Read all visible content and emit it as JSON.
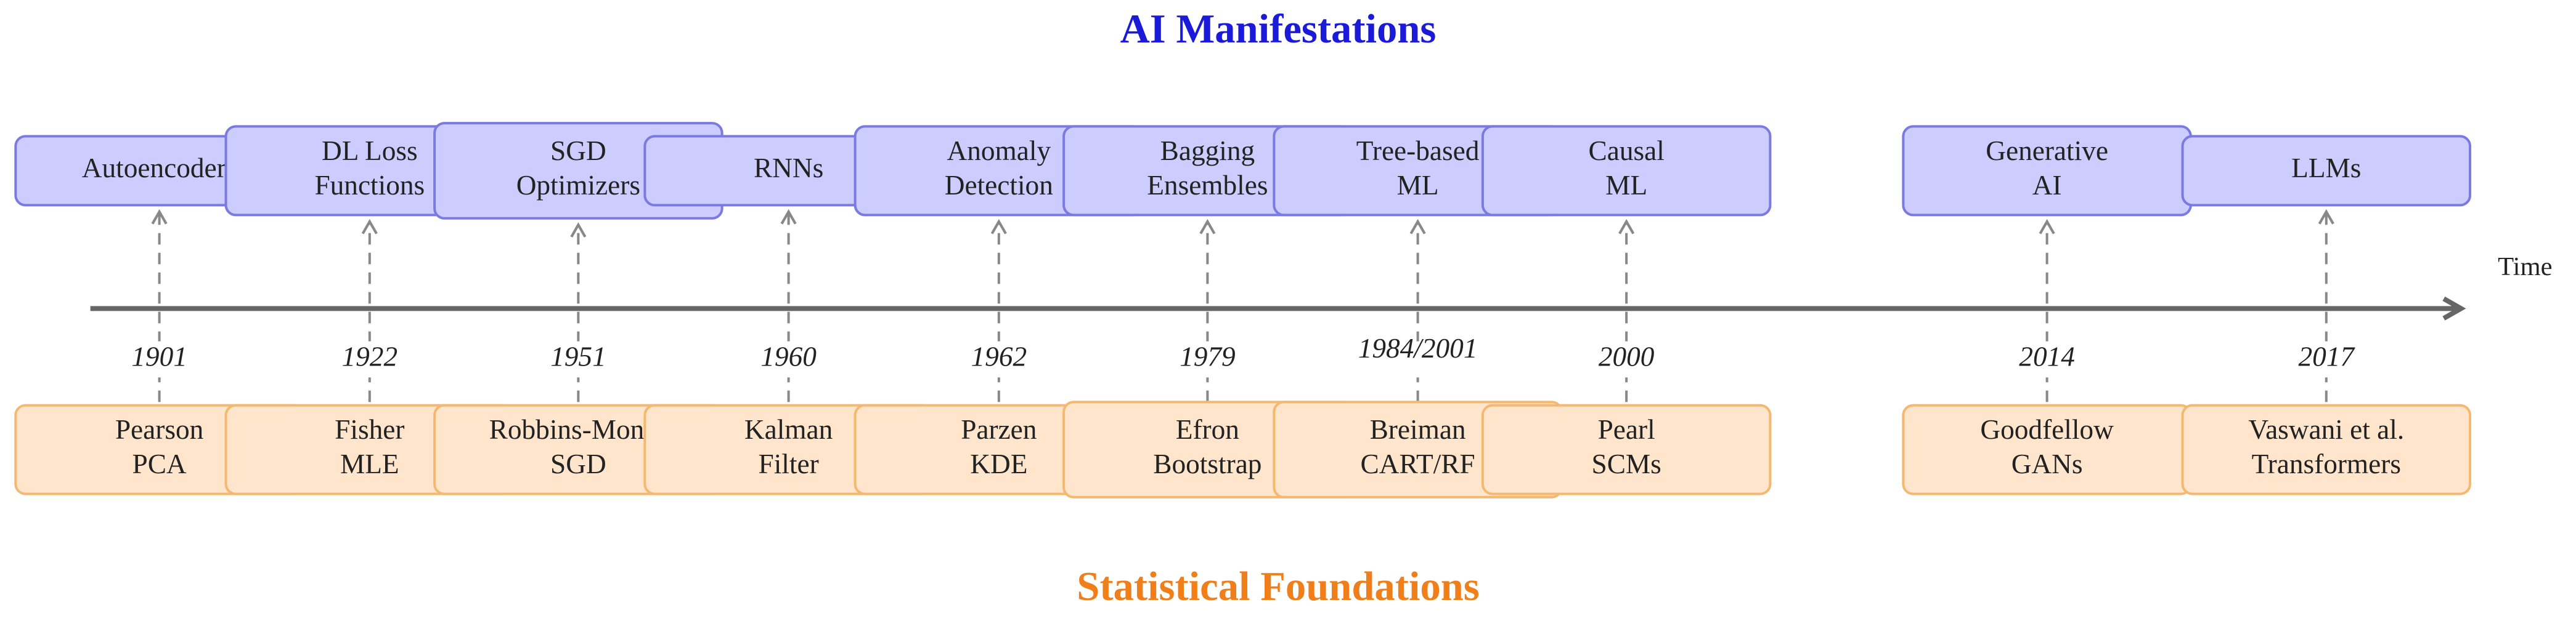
{
  "title": "AI Manifestations",
  "bottom_title": "Statistical Foundations",
  "axis_label": "Time",
  "events": [
    {
      "year": "1901",
      "top": [
        "Autoencoders"
      ],
      "bottom": [
        "Pearson",
        "PCA"
      ]
    },
    {
      "year": "1922",
      "top": [
        "DL Loss",
        "Functions"
      ],
      "bottom": [
        "Fisher",
        "MLE"
      ]
    },
    {
      "year": "1951",
      "top": [
        "SGD",
        "Optimizers"
      ],
      "bottom": [
        "Robbins-Monro",
        "SGD"
      ]
    },
    {
      "year": "1960",
      "top": [
        "RNNs"
      ],
      "bottom": [
        "Kalman",
        "Filter"
      ]
    },
    {
      "year": "1962",
      "top": [
        "Anomaly",
        "Detection"
      ],
      "bottom": [
        "Parzen",
        "KDE"
      ]
    },
    {
      "year": "1979",
      "top": [
        "Bagging",
        "Ensembles"
      ],
      "bottom": [
        "Efron",
        "Bootstrap"
      ]
    },
    {
      "year": "1984/2001",
      "top": [
        "Tree-based",
        "ML"
      ],
      "bottom": [
        "Breiman",
        "CART/RF"
      ]
    },
    {
      "year": "2000",
      "top": [
        "Causal",
        "ML"
      ],
      "bottom": [
        "Pearl",
        "SCMs"
      ]
    },
    {
      "year": "2014",
      "top": [
        "Generative",
        "AI"
      ],
      "bottom": [
        "Goodfellow",
        "GANs"
      ]
    },
    {
      "year": "2017",
      "top": [
        "LLMs"
      ],
      "bottom": [
        "Vaswani et al.",
        "Transformers"
      ]
    }
  ]
}
